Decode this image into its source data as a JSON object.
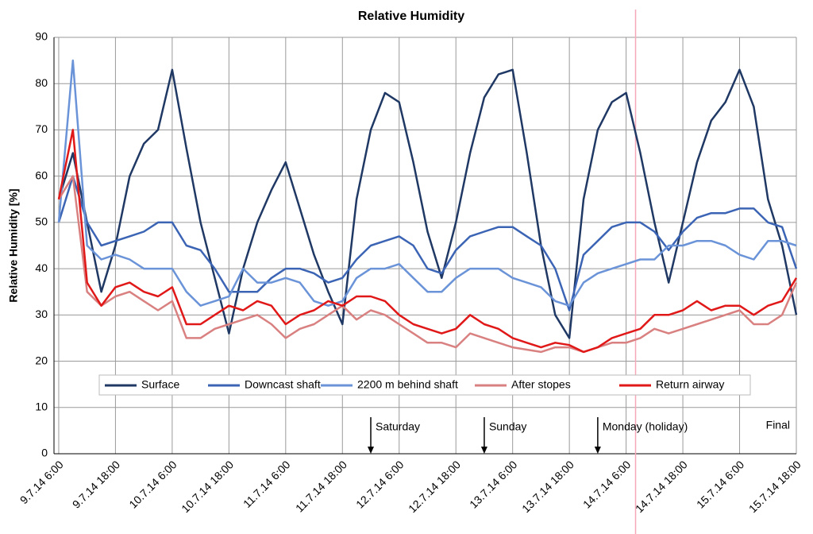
{
  "chart_data": {
    "type": "line",
    "title": "Relative Humidity",
    "y_label": "Relative Humidity [%]",
    "ylim": [
      0,
      90
    ],
    "yticks": [
      0,
      10,
      20,
      30,
      40,
      50,
      60,
      70,
      80,
      90
    ],
    "xlim": [
      "9.7.14 5:00",
      "15.7.14 18:00"
    ],
    "xticks": [
      "9.7.14 6:00",
      "9.7.14 18:00",
      "10.7.14 6:00",
      "10.7.14 18:00",
      "11.7.14 6:00",
      "11.7.14 18:00",
      "12.7.14 6:00",
      "12.7.14 18:00",
      "13.7.14 6:00",
      "13.7.14 18:00",
      "14.7.14 6:00",
      "14.7.14 18:00",
      "15.7.14 6:00",
      "15.7.14 18:00"
    ],
    "grid": true,
    "x": [
      "9.7.14 6:00",
      "9.7.14 9:00",
      "9.7.14 12:00",
      "9.7.14 15:00",
      "9.7.14 18:00",
      "9.7.14 21:00",
      "10.7.14 0:00",
      "10.7.14 3:00",
      "10.7.14 6:00",
      "10.7.14 9:00",
      "10.7.14 12:00",
      "10.7.14 15:00",
      "10.7.14 18:00",
      "10.7.14 21:00",
      "11.7.14 0:00",
      "11.7.14 3:00",
      "11.7.14 6:00",
      "11.7.14 9:00",
      "11.7.14 12:00",
      "11.7.14 15:00",
      "11.7.14 18:00",
      "11.7.14 21:00",
      "12.7.14 0:00",
      "12.7.14 3:00",
      "12.7.14 6:00",
      "12.7.14 9:00",
      "12.7.14 12:00",
      "12.7.14 15:00",
      "12.7.14 18:00",
      "12.7.14 21:00",
      "13.7.14 0:00",
      "13.7.14 3:00",
      "13.7.14 6:00",
      "13.7.14 9:00",
      "13.7.14 12:00",
      "13.7.14 15:00",
      "13.7.14 18:00",
      "13.7.14 21:00",
      "14.7.14 0:00",
      "14.7.14 3:00",
      "14.7.14 6:00",
      "14.7.14 9:00",
      "14.7.14 12:00",
      "14.7.14 15:00",
      "14.7.14 18:00",
      "14.7.14 21:00",
      "15.7.14 0:00",
      "15.7.14 3:00",
      "15.7.14 6:00",
      "15.7.14 9:00",
      "15.7.14 12:00",
      "15.7.14 15:00",
      "15.7.14 18:00"
    ],
    "series": [
      {
        "name": "Surface",
        "color": "#1f3864",
        "values": [
          55,
          65,
          50,
          35,
          45,
          60,
          67,
          70,
          83,
          66,
          50,
          38,
          26,
          40,
          50,
          57,
          63,
          53,
          43,
          35,
          28,
          55,
          70,
          78,
          76,
          63,
          48,
          38,
          50,
          65,
          77,
          82,
          83,
          65,
          45,
          30,
          25,
          55,
          70,
          76,
          78,
          65,
          50,
          37,
          50,
          63,
          72,
          76,
          83,
          75,
          55,
          45,
          30
        ]
      },
      {
        "name": "Downcast shaft",
        "color": "#3c64b4",
        "values": [
          50,
          60,
          50,
          45,
          46,
          47,
          48,
          50,
          50,
          45,
          44,
          40,
          35,
          35,
          35,
          38,
          40,
          40,
          39,
          37,
          38,
          42,
          45,
          46,
          47,
          45,
          40,
          39,
          44,
          47,
          48,
          49,
          49,
          47,
          45,
          40,
          31,
          43,
          46,
          49,
          50,
          50,
          48,
          44,
          48,
          51,
          52,
          52,
          53,
          53,
          50,
          49,
          40
        ]
      },
      {
        "name": "2200 m behind shaft",
        "color": "#6a93d8",
        "values": [
          50,
          85,
          45,
          42,
          43,
          42,
          40,
          40,
          40,
          35,
          32,
          33,
          34,
          40,
          37,
          37,
          38,
          37,
          33,
          32,
          33,
          38,
          40,
          40,
          41,
          38,
          35,
          35,
          38,
          40,
          40,
          40,
          38,
          37,
          36,
          33,
          32,
          37,
          39,
          40,
          41,
          42,
          42,
          45,
          45,
          46,
          46,
          45,
          43,
          42,
          46,
          46,
          45
        ]
      },
      {
        "name": "After stopes",
        "color": "#d98080",
        "values": [
          55,
          60,
          35,
          32,
          34,
          35,
          33,
          31,
          33,
          25,
          25,
          27,
          28,
          29,
          30,
          28,
          25,
          27,
          28,
          30,
          32,
          29,
          31,
          30,
          28,
          26,
          24,
          24,
          23,
          26,
          25,
          24,
          23,
          22.5,
          22,
          23,
          23,
          22,
          23,
          24,
          24,
          25,
          27,
          26,
          27,
          28,
          29,
          30,
          31,
          28,
          28,
          30,
          37
        ]
      },
      {
        "name": "Return airway",
        "color": "#e01818",
        "values": [
          55,
          70,
          37,
          32,
          36,
          37,
          35,
          34,
          36,
          28,
          28,
          30,
          32,
          31,
          33,
          32,
          28,
          30,
          31,
          33,
          32,
          34,
          34,
          33,
          30,
          28,
          27,
          26,
          27,
          30,
          28,
          27,
          25,
          24,
          23,
          24,
          23.5,
          22,
          23,
          25,
          26,
          27,
          30,
          30,
          31,
          33,
          31,
          32,
          32,
          30,
          32,
          33,
          38
        ]
      }
    ],
    "annotations": [
      {
        "text": "Saturday",
        "x": "12.7.14 0:00"
      },
      {
        "text": "Sunday",
        "x": "13.7.14 0:00"
      },
      {
        "text": "Monday (holiday)",
        "x": "14.7.14 0:00"
      },
      {
        "text": "Final"
      }
    ],
    "marker_line": {
      "x": "14.7.14 8:00",
      "color": "#f4a8b8"
    }
  }
}
